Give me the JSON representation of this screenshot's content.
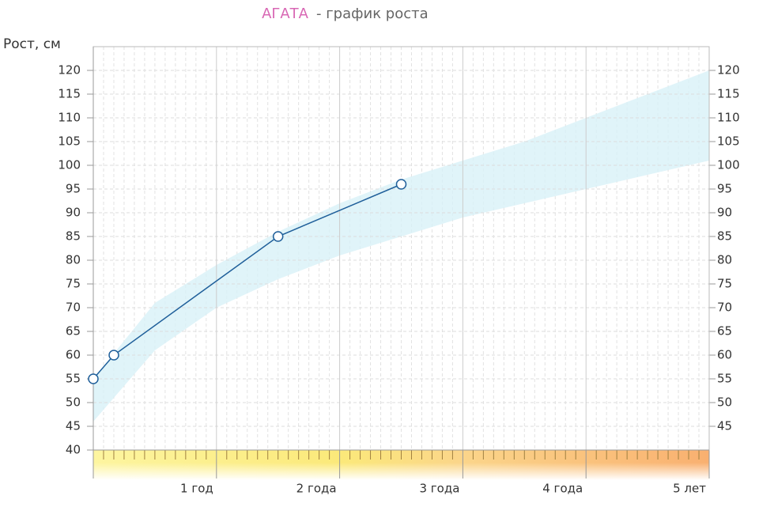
{
  "chart_data": {
    "type": "line",
    "title_name": "АГАТА",
    "title": "- график роста",
    "y_label": "Рост, см",
    "xlim": [
      0,
      5
    ],
    "xticks": [
      {
        "value": 1,
        "label": "1 год"
      },
      {
        "value": 2,
        "label": "2 года"
      },
      {
        "value": 3,
        "label": "3 года"
      },
      {
        "value": 4,
        "label": "4 года"
      },
      {
        "value": 5,
        "label": "5 лет"
      }
    ],
    "ylim": [
      40,
      125
    ],
    "yticks": [
      40,
      45,
      50,
      55,
      60,
      65,
      70,
      75,
      80,
      85,
      90,
      95,
      100,
      105,
      110,
      115,
      120
    ],
    "y2lim": [
      40,
      125
    ],
    "y2ticks": [
      45,
      50,
      55,
      60,
      65,
      70,
      75,
      80,
      85,
      90,
      95,
      100,
      105,
      110,
      115,
      120
    ],
    "grid": true,
    "series": [
      {
        "color": "#1f5f9a",
        "x": [
          0,
          0.167,
          1.5,
          2.5
        ],
        "values": [
          55,
          60,
          85,
          96
        ]
      }
    ],
    "norm_band": {
      "color": "#d8f1f8",
      "x": [
        0,
        0.5,
        1,
        1.5,
        2,
        2.5,
        3,
        3.5,
        4,
        4.5,
        5
      ],
      "lower": [
        46,
        61,
        70,
        76,
        81,
        85,
        89,
        92,
        95,
        98,
        101
      ],
      "upper": [
        55,
        71,
        79,
        86,
        92,
        97,
        101,
        105,
        110,
        115,
        120
      ]
    }
  }
}
